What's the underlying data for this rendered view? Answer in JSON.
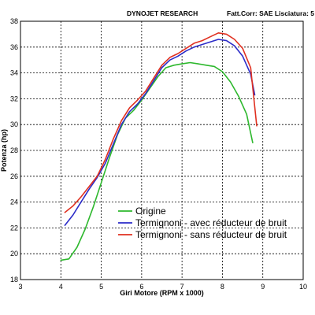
{
  "header": {
    "brand": "DYNOJET RESEARCH",
    "info": "Fatt.Corr: SAE  Lisciatura: 5"
  },
  "chart_data": {
    "type": "line",
    "title": "",
    "xlabel": "Giri Motore (RPM x 1000)",
    "ylabel": "Potenza (hp)",
    "xlim": [
      3,
      10
    ],
    "ylim": [
      18,
      38
    ],
    "xticks": [
      3,
      4,
      5,
      6,
      7,
      8,
      9,
      10
    ],
    "yticks": [
      18,
      20,
      22,
      24,
      26,
      28,
      30,
      32,
      34,
      36,
      38
    ],
    "grid": true,
    "legend_position": "center-left",
    "series": [
      {
        "name": "Origine",
        "color": "#2eb82e",
        "x": [
          4.0,
          4.2,
          4.4,
          4.6,
          4.8,
          5.0,
          5.2,
          5.4,
          5.6,
          5.8,
          6.0,
          6.2,
          6.4,
          6.6,
          6.8,
          7.0,
          7.2,
          7.4,
          7.6,
          7.8,
          8.0,
          8.2,
          8.4,
          8.6,
          8.75
        ],
        "y": [
          19.5,
          19.6,
          20.5,
          21.9,
          23.6,
          25.5,
          27.4,
          29.2,
          30.5,
          31.1,
          31.9,
          32.8,
          33.7,
          34.4,
          34.6,
          34.7,
          34.8,
          34.7,
          34.6,
          34.5,
          34.1,
          33.3,
          32.2,
          30.8,
          28.6
        ]
      },
      {
        "name": "Termignoni - avec réducteur de bruit",
        "color": "#2c2cc8",
        "x": [
          4.1,
          4.3,
          4.5,
          4.7,
          4.9,
          5.1,
          5.3,
          5.5,
          5.7,
          5.9,
          6.1,
          6.3,
          6.5,
          6.7,
          6.9,
          7.1,
          7.3,
          7.5,
          7.7,
          7.9,
          8.1,
          8.3,
          8.5,
          8.7,
          8.8
        ],
        "y": [
          22.2,
          23.0,
          24.0,
          25.0,
          25.9,
          27.0,
          28.5,
          30.0,
          31.0,
          31.6,
          32.4,
          33.4,
          34.4,
          35.0,
          35.3,
          35.7,
          36.0,
          36.2,
          36.4,
          36.6,
          36.5,
          36.1,
          35.3,
          33.9,
          32.3
        ]
      },
      {
        "name": "Termignoni - sans réducteur de bruit",
        "color": "#e03020",
        "x": [
          4.1,
          4.3,
          4.5,
          4.7,
          4.9,
          5.1,
          5.3,
          5.5,
          5.7,
          5.9,
          6.1,
          6.3,
          6.5,
          6.7,
          6.9,
          7.1,
          7.3,
          7.5,
          7.7,
          7.9,
          8.1,
          8.3,
          8.5,
          8.7,
          8.85
        ],
        "y": [
          23.2,
          23.7,
          24.4,
          25.2,
          26.0,
          27.3,
          28.9,
          30.3,
          31.3,
          31.9,
          32.6,
          33.6,
          34.6,
          35.2,
          35.5,
          35.9,
          36.3,
          36.5,
          36.8,
          37.1,
          37.0,
          36.6,
          35.9,
          34.4,
          29.9
        ]
      }
    ]
  }
}
